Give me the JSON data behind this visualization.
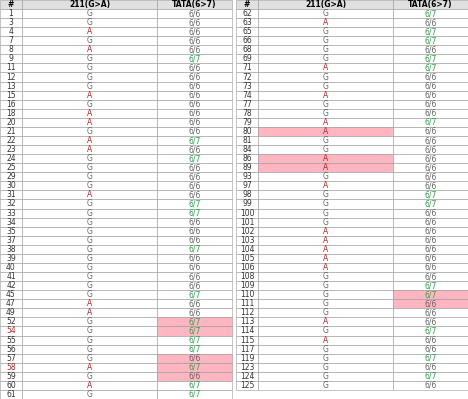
{
  "col_headers": [
    "#",
    "211(G>A)",
    "TATA(6>7)"
  ],
  "left_rows": [
    [
      "1",
      "G",
      "6/6",
      false,
      false,
      false
    ],
    [
      "3",
      "G",
      "6/6",
      false,
      false,
      false
    ],
    [
      "4",
      "A",
      "6/6",
      false,
      false,
      false
    ],
    [
      "7",
      "G",
      "6/6",
      false,
      false,
      false
    ],
    [
      "8",
      "A",
      "6/6",
      false,
      false,
      false
    ],
    [
      "9",
      "G",
      "6/7",
      false,
      false,
      false
    ],
    [
      "11",
      "G",
      "6/6",
      false,
      false,
      false
    ],
    [
      "12",
      "G",
      "6/6",
      false,
      false,
      false
    ],
    [
      "13",
      "G",
      "6/6",
      false,
      false,
      false
    ],
    [
      "15",
      "A",
      "6/6",
      false,
      false,
      false
    ],
    [
      "16",
      "G",
      "6/6",
      false,
      false,
      false
    ],
    [
      "18",
      "A",
      "6/6",
      false,
      false,
      false
    ],
    [
      "20",
      "A",
      "6/6",
      false,
      false,
      false
    ],
    [
      "21",
      "G",
      "6/6",
      false,
      false,
      false
    ],
    [
      "22",
      "A",
      "6/7",
      false,
      false,
      false
    ],
    [
      "23",
      "A",
      "6/6",
      false,
      false,
      false
    ],
    [
      "24",
      "G",
      "6/7",
      false,
      false,
      false
    ],
    [
      "25",
      "G",
      "6/6",
      false,
      false,
      false
    ],
    [
      "29",
      "G",
      "6/6",
      false,
      false,
      false
    ],
    [
      "30",
      "G",
      "6/6",
      false,
      false,
      false
    ],
    [
      "31",
      "A",
      "6/6",
      false,
      false,
      false
    ],
    [
      "32",
      "G",
      "6/7",
      false,
      false,
      false
    ],
    [
      "33",
      "G",
      "6/7",
      false,
      false,
      false
    ],
    [
      "34",
      "G",
      "6/6",
      false,
      false,
      false
    ],
    [
      "35",
      "G",
      "6/6",
      false,
      false,
      false
    ],
    [
      "37",
      "G",
      "6/6",
      false,
      false,
      false
    ],
    [
      "38",
      "G",
      "6/7",
      false,
      false,
      false
    ],
    [
      "39",
      "G",
      "6/6",
      false,
      false,
      false
    ],
    [
      "40",
      "G",
      "6/6",
      false,
      false,
      false
    ],
    [
      "41",
      "G",
      "6/6",
      false,
      false,
      false
    ],
    [
      "42",
      "G",
      "6/6",
      false,
      false,
      false
    ],
    [
      "45",
      "G",
      "6/7",
      false,
      false,
      false
    ],
    [
      "47",
      "A",
      "6/6",
      false,
      false,
      false
    ],
    [
      "49",
      "A",
      "6/6",
      false,
      false,
      false
    ],
    [
      "52",
      "G",
      "6/7",
      false,
      false,
      true
    ],
    [
      "54",
      "G",
      "6/7",
      true,
      false,
      true
    ],
    [
      "55",
      "G",
      "6/7",
      false,
      false,
      false
    ],
    [
      "56",
      "G",
      "6/7",
      false,
      false,
      false
    ],
    [
      "57",
      "G",
      "6/6",
      false,
      false,
      true
    ],
    [
      "58",
      "A",
      "6/7",
      true,
      false,
      true
    ],
    [
      "59",
      "G",
      "6/6",
      false,
      false,
      true
    ],
    [
      "60",
      "A",
      "6/7",
      false,
      false,
      false
    ],
    [
      "61",
      "G",
      "6/7",
      false,
      false,
      false
    ]
  ],
  "right_rows": [
    [
      "62",
      "G",
      "6/7",
      false,
      false,
      false
    ],
    [
      "63",
      "A",
      "6/6",
      false,
      false,
      false
    ],
    [
      "65",
      "G",
      "6/7",
      false,
      false,
      false
    ],
    [
      "66",
      "G",
      "6/7",
      false,
      false,
      false
    ],
    [
      "68",
      "G",
      "6/6",
      false,
      false,
      false
    ],
    [
      "69",
      "G",
      "6/7",
      false,
      false,
      false
    ],
    [
      "71",
      "A",
      "6/7",
      false,
      false,
      false
    ],
    [
      "72",
      "G",
      "6/6",
      false,
      false,
      false
    ],
    [
      "73",
      "G",
      "6/6",
      false,
      false,
      false
    ],
    [
      "74",
      "A",
      "6/6",
      false,
      false,
      false
    ],
    [
      "77",
      "G",
      "6/6",
      false,
      false,
      false
    ],
    [
      "78",
      "G",
      "6/6",
      false,
      false,
      false
    ],
    [
      "79",
      "A",
      "6/7",
      false,
      false,
      false
    ],
    [
      "80",
      "A",
      "6/6",
      false,
      true,
      false
    ],
    [
      "81",
      "G",
      "6/6",
      false,
      false,
      false
    ],
    [
      "84",
      "G",
      "6/6",
      false,
      false,
      false
    ],
    [
      "86",
      "A",
      "6/6",
      false,
      true,
      false
    ],
    [
      "89",
      "A",
      "6/6",
      false,
      true,
      false
    ],
    [
      "93",
      "G",
      "6/6",
      false,
      false,
      false
    ],
    [
      "97",
      "A",
      "6/6",
      false,
      false,
      false
    ],
    [
      "98",
      "G",
      "6/7",
      false,
      false,
      false
    ],
    [
      "99",
      "G",
      "6/7",
      false,
      false,
      false
    ],
    [
      "100",
      "G",
      "6/6",
      false,
      false,
      false
    ],
    [
      "101",
      "G",
      "6/6",
      false,
      false,
      false
    ],
    [
      "102",
      "A",
      "6/6",
      false,
      false,
      false
    ],
    [
      "103",
      "A",
      "6/6",
      false,
      false,
      false
    ],
    [
      "104",
      "A",
      "6/6",
      false,
      false,
      false
    ],
    [
      "105",
      "A",
      "6/6",
      false,
      false,
      false
    ],
    [
      "106",
      "A",
      "6/6",
      false,
      false,
      false
    ],
    [
      "108",
      "G",
      "6/6",
      false,
      false,
      false
    ],
    [
      "109",
      "G",
      "6/7",
      false,
      false,
      false
    ],
    [
      "110",
      "G",
      "6/7",
      false,
      false,
      true
    ],
    [
      "111",
      "G",
      "6/6",
      false,
      false,
      true
    ],
    [
      "112",
      "G",
      "6/6",
      false,
      false,
      false
    ],
    [
      "113",
      "A",
      "6/6",
      false,
      false,
      false
    ],
    [
      "114",
      "G",
      "6/7",
      false,
      false,
      false
    ],
    [
      "115",
      "A",
      "6/6",
      false,
      false,
      false
    ],
    [
      "117",
      "G",
      "6/6",
      false,
      false,
      false
    ],
    [
      "119",
      "G",
      "6/7",
      false,
      false,
      false
    ],
    [
      "123",
      "G",
      "6/6",
      false,
      false,
      false
    ],
    [
      "124",
      "G",
      "6/7",
      false,
      false,
      false
    ],
    [
      "125",
      "G",
      "6/6",
      false,
      false,
      false
    ]
  ],
  "highlight_pink": "#ffb6c1",
  "color_A": "#cc2222",
  "color_G": "#666666",
  "color_67": "#22aa44",
  "color_66": "#666666",
  "header_bg": "#e0e0e0",
  "border_color": "#999999",
  "fig_w": 4.68,
  "fig_h": 3.99,
  "dpi": 100
}
